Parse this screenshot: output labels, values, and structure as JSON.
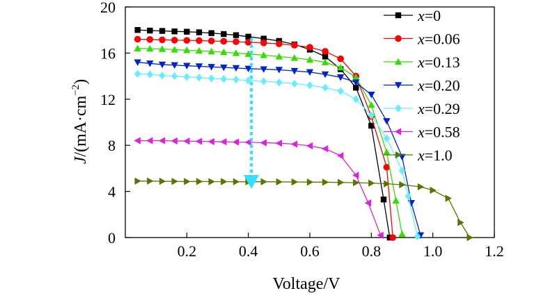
{
  "chart_data": {
    "type": "line",
    "title": "",
    "xlabel": "Voltage/V",
    "ylabel_main": "J",
    "ylabel_unit_prefix": "/(mA·cm",
    "ylabel_unit_sup": "−2",
    "ylabel_unit_suffix": ")",
    "xlim": [
      0,
      1.2
    ],
    "ylim": [
      0,
      20
    ],
    "xticks": [
      0.2,
      0.4,
      0.6,
      0.8,
      1.0,
      1.2
    ],
    "xtick_labels": [
      "0.2",
      "0.4",
      "0.6",
      "0.8",
      "1.0",
      "1.2"
    ],
    "yticks": [
      0,
      4,
      8,
      12,
      16,
      20
    ],
    "ytick_labels": [
      "0",
      "4",
      "8",
      "12",
      "16",
      "20"
    ],
    "grid": false,
    "legend_position": "top-right",
    "arrow": {
      "x": 0.41,
      "y_start": 17.3,
      "y_end": 4.7,
      "color": "#33e0ff"
    },
    "series": [
      {
        "name_var": "x",
        "name_val": "=0",
        "color": "#000000",
        "marker": "square",
        "x": [
          0.04,
          0.08,
          0.12,
          0.16,
          0.2,
          0.24,
          0.28,
          0.32,
          0.36,
          0.4,
          0.45,
          0.5,
          0.55,
          0.6,
          0.65,
          0.7,
          0.75,
          0.8,
          0.84,
          0.86
        ],
        "y": [
          18.0,
          17.95,
          17.92,
          17.88,
          17.85,
          17.8,
          17.73,
          17.65,
          17.55,
          17.42,
          17.25,
          17.05,
          16.75,
          16.3,
          15.7,
          14.6,
          13.0,
          9.7,
          3.3,
          0
        ]
      },
      {
        "name_var": "x",
        "name_val": "=0.06",
        "color": "#ff0000",
        "marker": "circle",
        "x": [
          0.04,
          0.08,
          0.12,
          0.16,
          0.2,
          0.24,
          0.28,
          0.32,
          0.36,
          0.4,
          0.45,
          0.5,
          0.55,
          0.6,
          0.65,
          0.7,
          0.75,
          0.8,
          0.85,
          0.87
        ],
        "y": [
          17.2,
          17.18,
          17.15,
          17.12,
          17.1,
          17.08,
          17.05,
          17.02,
          16.98,
          16.94,
          16.88,
          16.8,
          16.68,
          16.5,
          16.15,
          15.5,
          14.0,
          10.5,
          6.1,
          0
        ]
      },
      {
        "name_var": "x",
        "name_val": "=0.13",
        "color": "#33dd00",
        "marker": "triangle-up",
        "x": [
          0.04,
          0.08,
          0.12,
          0.16,
          0.2,
          0.24,
          0.28,
          0.32,
          0.36,
          0.4,
          0.45,
          0.5,
          0.55,
          0.6,
          0.65,
          0.7,
          0.75,
          0.8,
          0.85,
          0.88,
          0.9
        ],
        "y": [
          16.4,
          16.38,
          16.35,
          16.3,
          16.25,
          16.2,
          16.14,
          16.08,
          16.0,
          15.92,
          15.82,
          15.7,
          15.58,
          15.42,
          15.2,
          14.75,
          13.9,
          11.5,
          7.4,
          3.2,
          0.3
        ]
      },
      {
        "name_var": "x",
        "name_val": "=0.20",
        "color": "#0022cc",
        "marker": "triangle-down",
        "x": [
          0.04,
          0.08,
          0.12,
          0.16,
          0.2,
          0.24,
          0.28,
          0.32,
          0.36,
          0.4,
          0.45,
          0.5,
          0.55,
          0.6,
          0.65,
          0.7,
          0.75,
          0.8,
          0.85,
          0.9,
          0.93,
          0.96
        ],
        "y": [
          15.2,
          15.1,
          15.0,
          14.95,
          14.9,
          14.85,
          14.8,
          14.75,
          14.7,
          14.65,
          14.6,
          14.55,
          14.45,
          14.35,
          14.15,
          13.9,
          13.45,
          12.4,
          10.1,
          7.0,
          3.0,
          0.2
        ]
      },
      {
        "name_var": "x",
        "name_val": "=0.29",
        "color": "#66eeff",
        "marker": "diamond",
        "x": [
          0.04,
          0.08,
          0.12,
          0.16,
          0.2,
          0.24,
          0.28,
          0.32,
          0.36,
          0.4,
          0.45,
          0.5,
          0.55,
          0.6,
          0.65,
          0.7,
          0.75,
          0.8,
          0.85,
          0.9,
          0.92,
          0.95
        ],
        "y": [
          14.2,
          14.15,
          14.05,
          14.0,
          13.93,
          13.88,
          13.8,
          13.75,
          13.7,
          13.62,
          13.55,
          13.45,
          13.35,
          13.2,
          13.0,
          12.7,
          12.0,
          10.6,
          8.6,
          5.8,
          3.6,
          0.1
        ]
      },
      {
        "name_var": "x",
        "name_val": "=0.58",
        "color": "#dd22dd",
        "marker": "triangle-left",
        "x": [
          0.04,
          0.08,
          0.12,
          0.16,
          0.2,
          0.24,
          0.28,
          0.32,
          0.36,
          0.4,
          0.45,
          0.5,
          0.55,
          0.6,
          0.65,
          0.7,
          0.75,
          0.79,
          0.83
        ],
        "y": [
          8.4,
          8.4,
          8.4,
          8.38,
          8.36,
          8.34,
          8.32,
          8.3,
          8.28,
          8.26,
          8.22,
          8.18,
          8.1,
          7.95,
          7.7,
          7.1,
          5.4,
          3.0,
          0.2
        ]
      },
      {
        "name_var": "x",
        "name_val": "=1.0",
        "color": "#557700",
        "marker": "triangle-right",
        "x": [
          0.04,
          0.08,
          0.12,
          0.16,
          0.2,
          0.24,
          0.28,
          0.32,
          0.36,
          0.4,
          0.45,
          0.5,
          0.55,
          0.6,
          0.65,
          0.7,
          0.75,
          0.8,
          0.85,
          0.9,
          0.96,
          1.0,
          1.05,
          1.09,
          1.12
        ],
        "y": [
          4.9,
          4.9,
          4.88,
          4.87,
          4.86,
          4.86,
          4.85,
          4.85,
          4.84,
          4.84,
          4.84,
          4.83,
          4.82,
          4.81,
          4.8,
          4.78,
          4.76,
          4.72,
          4.66,
          4.58,
          4.4,
          4.1,
          3.4,
          1.3,
          0
        ]
      }
    ]
  }
}
